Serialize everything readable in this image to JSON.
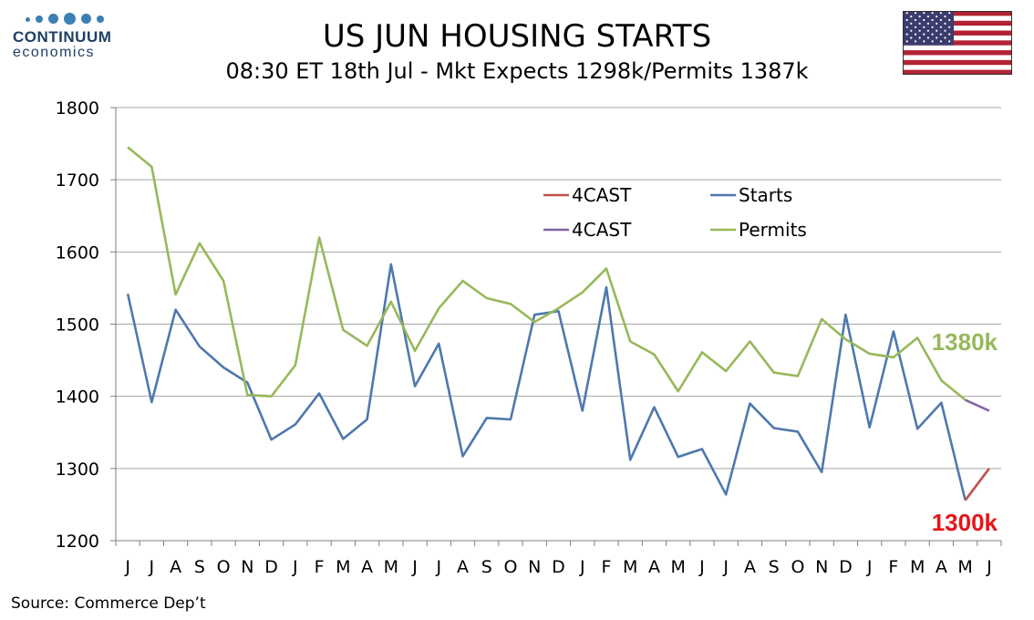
{
  "logo": {
    "name": "CONTINUUM",
    "sub": "economics"
  },
  "header": {
    "title": "US JUN HOUSING STARTS",
    "subtitle": "08:30 ET 18th Jul - Mkt Expects 1298k/Permits 1387k"
  },
  "source": "Source: Commerce Dep’t",
  "colors": {
    "starts": "#4f78ad",
    "permits": "#98b85a",
    "forecast_starts": "#c0504d",
    "forecast_permits": "#8064a2",
    "annotation_starts": "#e8141a",
    "annotation_permits": "#98b85a",
    "grid": "#a6a6a6"
  },
  "chart_data": {
    "type": "line",
    "categories": [
      "J",
      "J",
      "A",
      "S",
      "O",
      "N",
      "D",
      "J",
      "F",
      "M",
      "A",
      "M",
      "J",
      "J",
      "A",
      "S",
      "O",
      "N",
      "D",
      "J",
      "F",
      "M",
      "A",
      "M",
      "J",
      "J",
      "A",
      "S",
      "O",
      "N",
      "D",
      "J",
      "F",
      "M",
      "A",
      "M",
      "J"
    ],
    "ylim": [
      1200,
      1800
    ],
    "yticks": [
      1200,
      1300,
      1400,
      1500,
      1600,
      1700,
      1800
    ],
    "grid": true,
    "legend_placement": "upper-center",
    "series": [
      {
        "name": "Starts",
        "values": [
          1542,
          1392,
          1520,
          1469,
          1440,
          1419,
          1340,
          1361,
          1404,
          1341,
          1368,
          1583,
          1414,
          1473,
          1317,
          1370,
          1368,
          1513,
          1518,
          1380,
          1551,
          1312,
          1385,
          1316,
          1327,
          1264,
          1390,
          1356,
          1351,
          1295,
          1513,
          1357,
          1490,
          1355,
          1391,
          1256,
          null
        ]
      },
      {
        "name": "Permits",
        "values": [
          1745,
          1718,
          1541,
          1612,
          1560,
          1402,
          1400,
          1443,
          1620,
          1492,
          1470,
          1531,
          1463,
          1522,
          1560,
          1536,
          1528,
          1503,
          1522,
          1544,
          1577,
          1476,
          1458,
          1407,
          1461,
          1435,
          1476,
          1433,
          1428,
          1507,
          1479,
          1459,
          1454,
          1481,
          1422,
          1395,
          null
        ]
      },
      {
        "name": "4CAST",
        "values": [
          null,
          null,
          null,
          null,
          null,
          null,
          null,
          null,
          null,
          null,
          null,
          null,
          null,
          null,
          null,
          null,
          null,
          null,
          null,
          null,
          null,
          null,
          null,
          null,
          null,
          null,
          null,
          null,
          null,
          null,
          null,
          null,
          null,
          null,
          null,
          1256,
          1300
        ]
      },
      {
        "name": "4CAST",
        "values": [
          null,
          null,
          null,
          null,
          null,
          null,
          null,
          null,
          null,
          null,
          null,
          null,
          null,
          null,
          null,
          null,
          null,
          null,
          null,
          null,
          null,
          null,
          null,
          null,
          null,
          null,
          null,
          null,
          null,
          null,
          null,
          null,
          null,
          null,
          null,
          1395,
          1380
        ]
      }
    ],
    "legend": [
      {
        "name": "4CAST",
        "color": "#c0504d"
      },
      {
        "name": "Starts",
        "color": "#4f78ad"
      },
      {
        "name": "4CAST",
        "color": "#8064a2"
      },
      {
        "name": "Permits",
        "color": "#98b85a"
      }
    ],
    "annotations": [
      {
        "text": "1380k",
        "series": "Permits"
      },
      {
        "text": "1300k",
        "series": "Starts"
      }
    ]
  }
}
